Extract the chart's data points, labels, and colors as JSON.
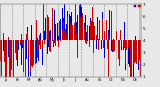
{
  "title": "",
  "background_color": "#e8e8e8",
  "plot_bg_color": "#e8e8e8",
  "grid_color": "#888888",
  "ylim": [
    1,
    7
  ],
  "xlim": [
    0,
    365
  ],
  "legend_blue_label": "",
  "legend_red_label": "",
  "bar_width": 0.8,
  "num_points": 365,
  "seed": 42,
  "blue_color": "#0000cc",
  "red_color": "#cc0000",
  "tick_fontsize": 3.0,
  "vgrid_interval": 30,
  "mid": 4.0,
  "yticks": [
    1,
    2,
    3,
    4,
    5,
    6,
    7
  ],
  "figsize": [
    1.6,
    0.87
  ],
  "dpi": 100
}
